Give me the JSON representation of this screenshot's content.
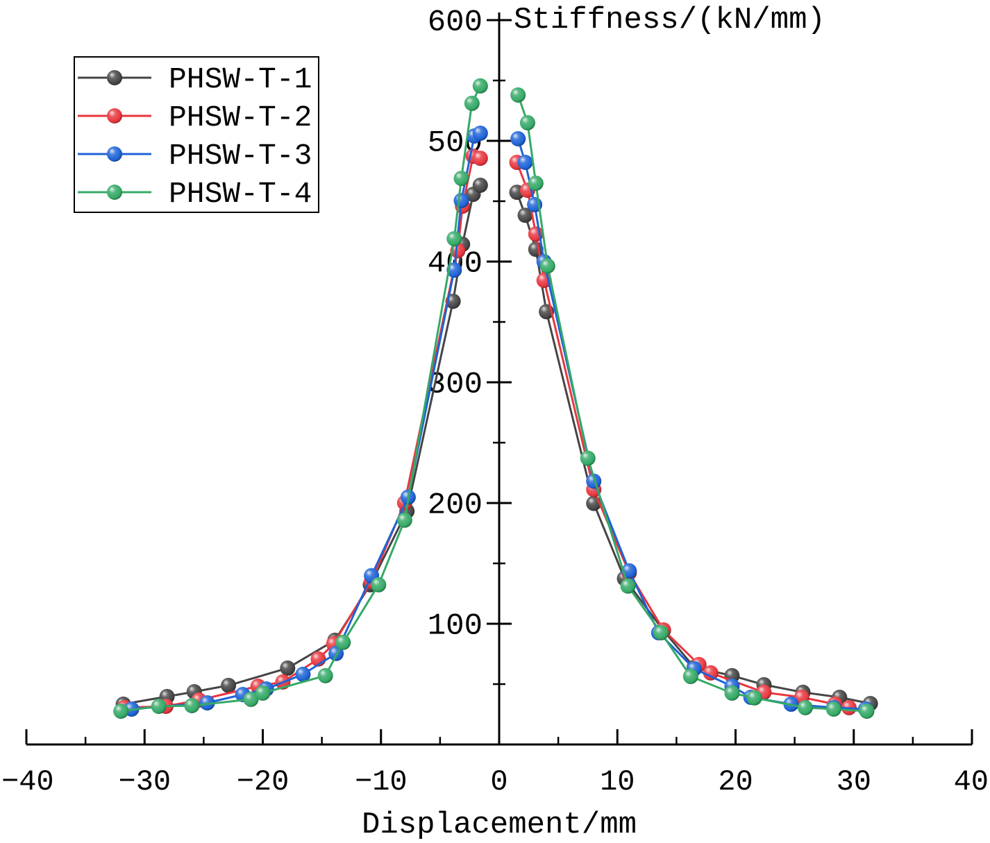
{
  "chart_data": {
    "type": "line",
    "xlabel": "Displacement/mm",
    "ylabel": "Stiffness/(kN/mm)",
    "xlim": [
      -40,
      40
    ],
    "ylim": [
      0,
      600
    ],
    "xticks": {
      "values": [
        -40,
        -30,
        -20,
        -10,
        0,
        10,
        20,
        30,
        40
      ],
      "labels": [
        "−40",
        "−30",
        "−20",
        "−10",
        "0",
        "10",
        "20",
        "30",
        "40"
      ]
    },
    "yticks": {
      "values": [
        100,
        200,
        300,
        400,
        500,
        600
      ],
      "labels": [
        "100",
        "200",
        "300",
        "400",
        "500",
        "600"
      ]
    },
    "grid": false,
    "legend_position": "top-left",
    "series": [
      {
        "name": "PHSW-T-1",
        "color": "#454545",
        "negative": {
          "x": [
            -31.8,
            -28.1,
            -25.8,
            -22.9,
            -17.9,
            -13.9,
            -10.9,
            -7.8,
            -3.9,
            -3.1,
            -2.2,
            -1.6
          ],
          "y": [
            33.4,
            39.7,
            43.7,
            48.9,
            63.3,
            86.3,
            132.3,
            193.3,
            367.1,
            414.3,
            455.7,
            463.2
          ]
        },
        "positive": {
          "x": [
            1.5,
            2.2,
            3.1,
            4.0,
            8.0,
            10.6,
            13.9,
            16.5,
            19.7,
            22.4,
            25.7,
            28.8,
            31.4
          ],
          "y": [
            457.4,
            438.4,
            410.2,
            358.5,
            199.7,
            137.5,
            94.4,
            63.9,
            57.0,
            49.5,
            43.2,
            39.1,
            33.9
          ]
        }
      },
      {
        "name": "PHSW-T-2",
        "color": "#e8363e",
        "negative": {
          "x": [
            -31.7,
            -28.2,
            -25.4,
            -20.4,
            -18.3,
            -15.3,
            -14.0,
            -10.8,
            -8.0,
            -3.5,
            -3.1,
            -2.2,
            -1.6
          ],
          "y": [
            30.5,
            31.6,
            36.8,
            48.3,
            51.8,
            70.8,
            83.4,
            135.2,
            200.2,
            409.1,
            445.9,
            487.3,
            485.6
          ]
        },
        "positive": {
          "x": [
            1.5,
            2.4,
            3.1,
            3.8,
            8.0,
            11.0,
            13.9,
            16.9,
            17.9,
            22.4,
            25.6,
            28.4,
            29.6
          ],
          "y": [
            482.2,
            459.1,
            422.9,
            384.4,
            211.2,
            142.1,
            94.9,
            66.2,
            59.3,
            43.2,
            39.1,
            33.4,
            30.5
          ]
        }
      },
      {
        "name": "PHSW-T-3",
        "color": "#1e63d6",
        "negative": {
          "x": [
            -31.1,
            -24.7,
            -21.7,
            -19.7,
            -16.6,
            -13.8,
            -10.8,
            -7.7,
            -3.8,
            -3.2,
            -2.1,
            -1.6
          ],
          "y": [
            29.3,
            34.5,
            41.4,
            46.0,
            58.1,
            75.4,
            139.8,
            204.8,
            393.0,
            450.5,
            504.0,
            506.3
          ]
        },
        "positive": {
          "x": [
            1.6,
            2.2,
            3.0,
            3.8,
            8.0,
            11.0,
            13.5,
            16.5,
            19.7,
            21.3,
            24.7,
            28.3,
            31.0
          ],
          "y": [
            501.7,
            482.2,
            447.1,
            399.9,
            218.1,
            143.8,
            92.6,
            62.7,
            48.3,
            39.1,
            33.4,
            30.5,
            29.3
          ]
        }
      },
      {
        "name": "PHSW-T-4",
        "color": "#34a966",
        "negative": {
          "x": [
            -32.0,
            -28.8,
            -26.0,
            -21.0,
            -20.0,
            -14.7,
            -13.2,
            -10.2,
            -8.0,
            -3.8,
            -3.2,
            -2.3,
            -1.6
          ],
          "y": [
            27.6,
            31.6,
            32.2,
            37.4,
            42.6,
            57.0,
            84.6,
            132.3,
            185.8,
            418.9,
            468.9,
            531.1,
            545.5
          ]
        },
        "positive": {
          "x": [
            1.6,
            2.4,
            3.1,
            4.1,
            7.5,
            10.9,
            13.7,
            16.2,
            19.7,
            21.6,
            25.9,
            28.3,
            31.1
          ],
          "y": [
            538.0,
            515.0,
            464.9,
            396.4,
            237.1,
            131.2,
            92.6,
            56.4,
            42.6,
            38.6,
            30.5,
            29.3,
            27.6
          ]
        }
      }
    ]
  }
}
